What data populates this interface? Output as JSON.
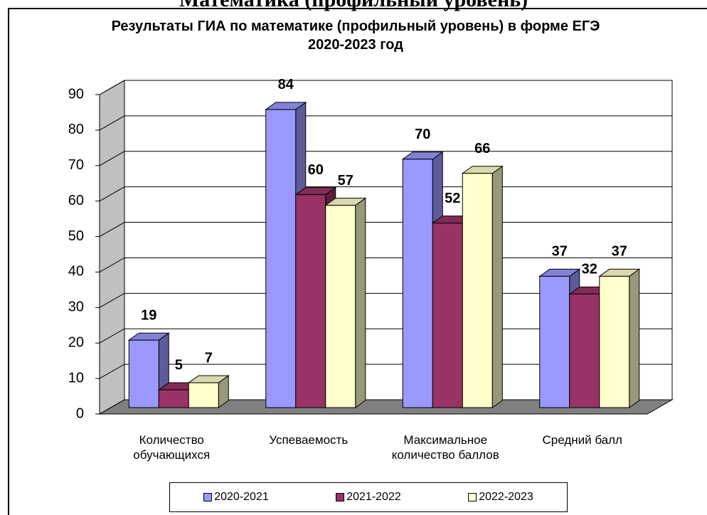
{
  "heading": "Математика (профильный уровень)",
  "chart_data": {
    "type": "bar3d",
    "title": "Результаты ГИА по математике (профильный уровень) в форме ЕГЭ 2020-2023 год",
    "categories": [
      "Количество обучающихся",
      "Успеваемость",
      "Максимальное количество баллов",
      "Средний балл"
    ],
    "series": [
      {
        "name": "2020-2021",
        "color": "#9999ff",
        "values": [
          19,
          84,
          70,
          37
        ]
      },
      {
        "name": "2021-2022",
        "color": "#993366",
        "values": [
          5,
          60,
          52,
          32
        ]
      },
      {
        "name": "2022-2023",
        "color": "#ffffcc",
        "values": [
          7,
          57,
          66,
          37
        ]
      }
    ],
    "ylim": [
      0,
      90
    ],
    "yticks": [
      0,
      10,
      20,
      30,
      40,
      50,
      60,
      70,
      80,
      90
    ],
    "grid": true,
    "legend": "bottom"
  }
}
